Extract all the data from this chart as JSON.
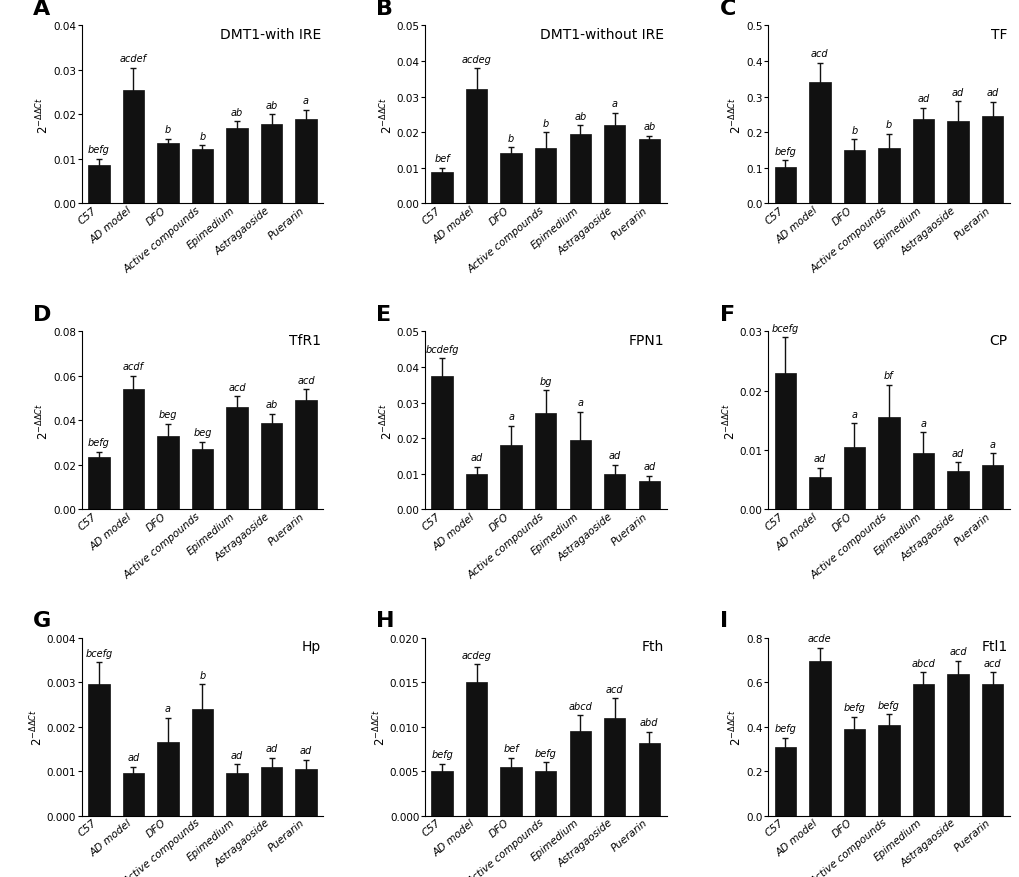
{
  "subplots": [
    {
      "label": "A",
      "title": "DMT1-with IRE",
      "ylim": [
        0,
        0.04
      ],
      "yticks": [
        0.0,
        0.01,
        0.02,
        0.03,
        0.04
      ],
      "yticklabels": [
        "0.00",
        "0.01",
        "0.02",
        "0.03",
        "0.04"
      ],
      "values": [
        0.0085,
        0.0255,
        0.0135,
        0.0122,
        0.017,
        0.0178,
        0.019
      ],
      "errors": [
        0.0015,
        0.005,
        0.001,
        0.0008,
        0.0015,
        0.0022,
        0.002
      ],
      "sig_labels": [
        "befg",
        "acdef",
        "b",
        "b",
        "ab",
        "ab",
        "a"
      ]
    },
    {
      "label": "B",
      "title": "DMT1-without IRE",
      "ylim": [
        0,
        0.05
      ],
      "yticks": [
        0.0,
        0.01,
        0.02,
        0.03,
        0.04,
        0.05
      ],
      "yticklabels": [
        "0.00",
        "0.01",
        "0.02",
        "0.03",
        "0.04",
        "0.05"
      ],
      "values": [
        0.0088,
        0.032,
        0.014,
        0.0155,
        0.0195,
        0.022,
        0.018
      ],
      "errors": [
        0.0012,
        0.006,
        0.0018,
        0.0045,
        0.0025,
        0.0035,
        0.001
      ],
      "sig_labels": [
        "bef",
        "acdeg",
        "b",
        "b",
        "ab",
        "a",
        "ab"
      ]
    },
    {
      "label": "C",
      "title": "TF",
      "ylim": [
        0,
        0.5
      ],
      "yticks": [
        0.0,
        0.1,
        0.2,
        0.3,
        0.4,
        0.5
      ],
      "yticklabels": [
        "0.0",
        "0.1",
        "0.2",
        "0.3",
        "0.4",
        "0.5"
      ],
      "values": [
        0.103,
        0.34,
        0.15,
        0.155,
        0.238,
        0.232,
        0.245
      ],
      "errors": [
        0.018,
        0.055,
        0.03,
        0.04,
        0.03,
        0.055,
        0.04
      ],
      "sig_labels": [
        "befg",
        "acd",
        "b",
        "b",
        "ad",
        "ad",
        "ad"
      ]
    },
    {
      "label": "D",
      "title": "TfR1",
      "ylim": [
        0,
        0.08
      ],
      "yticks": [
        0.0,
        0.02,
        0.04,
        0.06,
        0.08
      ],
      "yticklabels": [
        "0.00",
        "0.02",
        "0.04",
        "0.06",
        "0.08"
      ],
      "values": [
        0.0235,
        0.054,
        0.033,
        0.027,
        0.046,
        0.039,
        0.049
      ],
      "errors": [
        0.0025,
        0.006,
        0.0055,
        0.0035,
        0.005,
        0.004,
        0.005
      ],
      "sig_labels": [
        "befg",
        "acdf",
        "beg",
        "beg",
        "acd",
        "ab",
        "acd"
      ]
    },
    {
      "label": "E",
      "title": "FPN1",
      "ylim": [
        0,
        0.05
      ],
      "yticks": [
        0.0,
        0.01,
        0.02,
        0.03,
        0.04,
        0.05
      ],
      "yticklabels": [
        "0.00",
        "0.01",
        "0.02",
        "0.03",
        "0.04",
        "0.05"
      ],
      "values": [
        0.0375,
        0.01,
        0.018,
        0.027,
        0.0195,
        0.01,
        0.008
      ],
      "errors": [
        0.005,
        0.002,
        0.0055,
        0.0065,
        0.008,
        0.0025,
        0.0015
      ],
      "sig_labels": [
        "bcdefg",
        "ad",
        "a",
        "bg",
        "a",
        "ad",
        "ad"
      ]
    },
    {
      "label": "F",
      "title": "CP",
      "ylim": [
        0,
        0.03
      ],
      "yticks": [
        0.0,
        0.01,
        0.02,
        0.03
      ],
      "yticklabels": [
        "0.00",
        "0.01",
        "0.02",
        "0.03"
      ],
      "values": [
        0.023,
        0.0055,
        0.0105,
        0.0155,
        0.0095,
        0.0065,
        0.0075
      ],
      "errors": [
        0.006,
        0.0015,
        0.004,
        0.0055,
        0.0035,
        0.0015,
        0.002
      ],
      "sig_labels": [
        "bcefg",
        "ad",
        "a",
        "bf",
        "a",
        "ad",
        "a"
      ]
    },
    {
      "label": "G",
      "title": "Hp",
      "ylim": [
        0,
        0.004
      ],
      "yticks": [
        0.0,
        0.001,
        0.002,
        0.003,
        0.004
      ],
      "yticklabels": [
        "0.000",
        "0.001",
        "0.002",
        "0.003",
        "0.004"
      ],
      "values": [
        0.00295,
        0.00095,
        0.00165,
        0.0024,
        0.00095,
        0.0011,
        0.00105
      ],
      "errors": [
        0.0005,
        0.00015,
        0.00055,
        0.00055,
        0.0002,
        0.0002,
        0.0002
      ],
      "sig_labels": [
        "bcefg",
        "ad",
        "a",
        "b",
        "ad",
        "ad",
        "ad"
      ]
    },
    {
      "label": "H",
      "title": "Fth",
      "ylim": [
        0,
        0.02
      ],
      "yticks": [
        0.0,
        0.005,
        0.01,
        0.015,
        0.02
      ],
      "yticklabels": [
        "0.000",
        "0.005",
        "0.010",
        "0.015",
        "0.020"
      ],
      "values": [
        0.005,
        0.015,
        0.0055,
        0.005,
        0.0095,
        0.011,
        0.0082
      ],
      "errors": [
        0.0008,
        0.002,
        0.001,
        0.001,
        0.0018,
        0.0022,
        0.0012
      ],
      "sig_labels": [
        "befg",
        "acdeg",
        "bef",
        "befg",
        "abcd",
        "acd",
        "abd"
      ]
    },
    {
      "label": "I",
      "title": "Ftl1",
      "ylim": [
        0,
        0.8
      ],
      "yticks": [
        0.0,
        0.2,
        0.4,
        0.6,
        0.8
      ],
      "yticklabels": [
        "0.0",
        "0.2",
        "0.4",
        "0.6",
        "0.8"
      ],
      "values": [
        0.31,
        0.695,
        0.39,
        0.405,
        0.59,
        0.635,
        0.59
      ],
      "errors": [
        0.04,
        0.06,
        0.055,
        0.05,
        0.055,
        0.06,
        0.055
      ],
      "sig_labels": [
        "befg",
        "acde",
        "befg",
        "befg",
        "abcd",
        "acd",
        "acd"
      ]
    }
  ],
  "categories": [
    "C57",
    "AD model",
    "DFO",
    "Active compounds",
    "Epimedium",
    "Astragaoside",
    "Puerarin"
  ],
  "bar_color": "#111111",
  "error_color": "#111111",
  "ylabel": "2$^{-ΔΔCt}$",
  "background_color": "#ffffff",
  "sig_fontsize": 7.0,
  "label_fontsize": 16,
  "title_fontsize": 10,
  "tick_fontsize": 7.5,
  "ylabel_fontsize": 8.5
}
